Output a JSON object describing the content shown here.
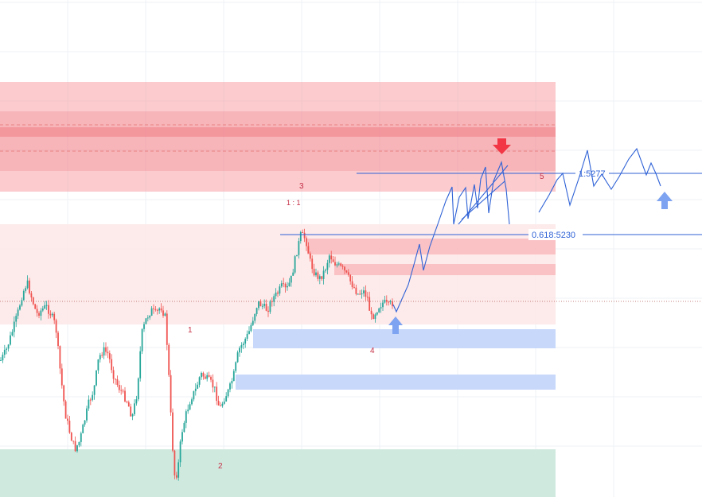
{
  "chart_data": {
    "type": "candlestick",
    "title": "",
    "xlabel": "",
    "ylabel": "",
    "grid": true,
    "colors": {
      "up": "#26a69a",
      "down": "#ef5350",
      "supply_zone": "#f7a1a6",
      "premium_zone": "#fde6e6",
      "demand_zone": "#c7d8fb",
      "low_zone": "#cfe9df",
      "projection": "#2f62d6",
      "sell_arrow": "#f23645",
      "buy_arrow": "#7ea3f0"
    },
    "price_levels": [
      {
        "ratio": "1",
        "price": "5277",
        "label": "1:5277"
      },
      {
        "ratio": "0.618",
        "price": "5230",
        "label": "0.618:5230"
      }
    ],
    "wave_labels": [
      "1",
      "2",
      "3",
      "4",
      "5"
    ],
    "ratio_label": "1 : 1",
    "signals": [
      {
        "type": "sell",
        "icon": "down-arrow-icon"
      },
      {
        "type": "buy",
        "icon": "up-arrow-icon"
      },
      {
        "type": "buy",
        "icon": "up-arrow-icon"
      }
    ],
    "price_path": [
      [
        0,
        455
      ],
      [
        8,
        440
      ],
      [
        16,
        415
      ],
      [
        22,
        395
      ],
      [
        28,
        370
      ],
      [
        34,
        355
      ],
      [
        40,
        375
      ],
      [
        46,
        395
      ],
      [
        52,
        390
      ],
      [
        58,
        385
      ],
      [
        64,
        395
      ],
      [
        70,
        410
      ],
      [
        76,
        470
      ],
      [
        82,
        520
      ],
      [
        88,
        545
      ],
      [
        94,
        565
      ],
      [
        100,
        555
      ],
      [
        106,
        530
      ],
      [
        112,
        505
      ],
      [
        118,
        490
      ],
      [
        124,
        450
      ],
      [
        130,
        440
      ],
      [
        136,
        445
      ],
      [
        142,
        470
      ],
      [
        148,
        485
      ],
      [
        154,
        495
      ],
      [
        160,
        505
      ],
      [
        166,
        525
      ],
      [
        172,
        495
      ],
      [
        178,
        420
      ],
      [
        184,
        400
      ],
      [
        190,
        390
      ],
      [
        196,
        395
      ],
      [
        202,
        385
      ],
      [
        208,
        400
      ],
      [
        212,
        470
      ],
      [
        216,
        550
      ],
      [
        220,
        605
      ],
      [
        224,
        585
      ],
      [
        228,
        545
      ],
      [
        234,
        520
      ],
      [
        240,
        500
      ],
      [
        246,
        490
      ],
      [
        252,
        470
      ],
      [
        258,
        475
      ],
      [
        264,
        480
      ],
      [
        270,
        490
      ],
      [
        276,
        515
      ],
      [
        282,
        500
      ],
      [
        288,
        490
      ],
      [
        294,
        470
      ],
      [
        300,
        440
      ],
      [
        306,
        430
      ],
      [
        312,
        420
      ],
      [
        318,
        400
      ],
      [
        324,
        380
      ],
      [
        330,
        385
      ],
      [
        336,
        390
      ],
      [
        342,
        375
      ],
      [
        348,
        370
      ],
      [
        354,
        360
      ],
      [
        360,
        365
      ],
      [
        366,
        350
      ],
      [
        372,
        320
      ],
      [
        378,
        295
      ],
      [
        384,
        300
      ],
      [
        390,
        330
      ],
      [
        396,
        345
      ],
      [
        402,
        350
      ],
      [
        408,
        340
      ],
      [
        414,
        320
      ],
      [
        420,
        330
      ],
      [
        426,
        335
      ],
      [
        432,
        340
      ],
      [
        438,
        350
      ],
      [
        444,
        360
      ],
      [
        450,
        370
      ],
      [
        456,
        365
      ],
      [
        462,
        375
      ],
      [
        466,
        400
      ],
      [
        470,
        395
      ],
      [
        476,
        385
      ],
      [
        482,
        380
      ],
      [
        488,
        385
      ],
      [
        494,
        380
      ]
    ]
  }
}
